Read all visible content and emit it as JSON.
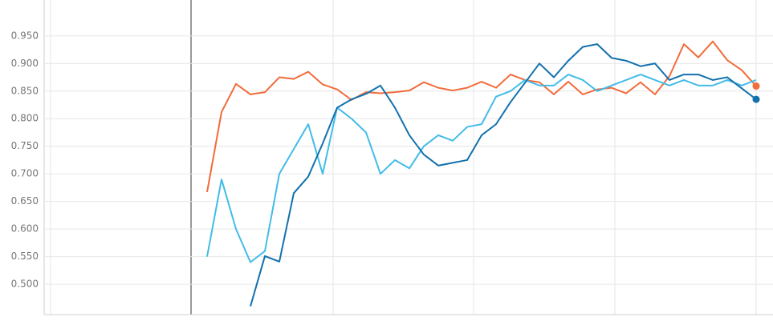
{
  "chart_data": {
    "type": "line",
    "x": [
      185,
      203,
      221,
      239,
      257,
      275,
      293,
      311,
      329,
      347,
      365,
      383,
      401,
      419,
      437,
      455,
      473,
      491,
      509,
      527,
      545,
      563,
      581,
      599,
      617,
      635,
      653,
      671,
      689,
      707,
      725,
      743,
      761,
      779,
      797,
      815,
      833,
      851,
      869,
      887
    ],
    "xlim": [
      0,
      908
    ],
    "ylim": [
      0.445,
      1.015
    ],
    "yticks": [
      {
        "value": 0.5,
        "label": "0.500"
      },
      {
        "value": 0.55,
        "label": "0.550"
      },
      {
        "value": 0.6,
        "label": "0.600"
      },
      {
        "value": 0.65,
        "label": "0.650"
      },
      {
        "value": 0.7,
        "label": "0.700"
      },
      {
        "value": 0.75,
        "label": "0.750"
      },
      {
        "value": 0.8,
        "label": "0.800"
      },
      {
        "value": 0.85,
        "label": "0.850"
      },
      {
        "value": 0.9,
        "label": "0.900"
      },
      {
        "value": 0.95,
        "label": "0.950"
      }
    ],
    "grid": true,
    "series": [
      {
        "color": "#f26b3a",
        "values": [
          null,
          0.667,
          0.812,
          0.863,
          0.844,
          0.848,
          0.875,
          0.872,
          0.885,
          0.862,
          0.853,
          0.834,
          0.848,
          0.846,
          0.848,
          0.851,
          0.866,
          0.856,
          0.851,
          0.856,
          0.867,
          0.856,
          0.88,
          0.87,
          0.866,
          0.844,
          0.867,
          0.844,
          0.853,
          0.856,
          0.846,
          0.866,
          0.844,
          0.877,
          0.935,
          0.911,
          0.94,
          0.906,
          0.888,
          0.859
        ]
      },
      {
        "color": "#42bce8",
        "values": [
          null,
          0.55,
          0.69,
          0.6,
          0.54,
          0.56,
          0.7,
          0.745,
          0.79,
          0.7,
          0.82,
          0.8,
          0.775,
          0.7,
          0.725,
          0.71,
          0.75,
          0.77,
          0.76,
          0.785,
          0.79,
          0.84,
          0.85,
          0.87,
          0.86,
          0.86,
          0.88,
          0.87,
          0.85,
          0.86,
          0.87,
          0.88,
          0.87,
          0.86,
          0.87,
          0.86,
          0.86,
          0.87,
          0.86,
          0.87
        ]
      },
      {
        "color": "#1271ad",
        "values": [
          null,
          null,
          null,
          null,
          0.46,
          0.551,
          0.541,
          0.665,
          0.695,
          0.755,
          0.82,
          0.835,
          0.845,
          0.86,
          0.82,
          0.77,
          0.735,
          0.715,
          0.72,
          0.725,
          0.77,
          0.79,
          0.83,
          0.865,
          0.9,
          0.875,
          0.905,
          0.93,
          0.935,
          0.91,
          0.905,
          0.895,
          0.9,
          0.87,
          0.88,
          0.88,
          0.87,
          0.875,
          0.855,
          0.835
        ]
      }
    ]
  }
}
